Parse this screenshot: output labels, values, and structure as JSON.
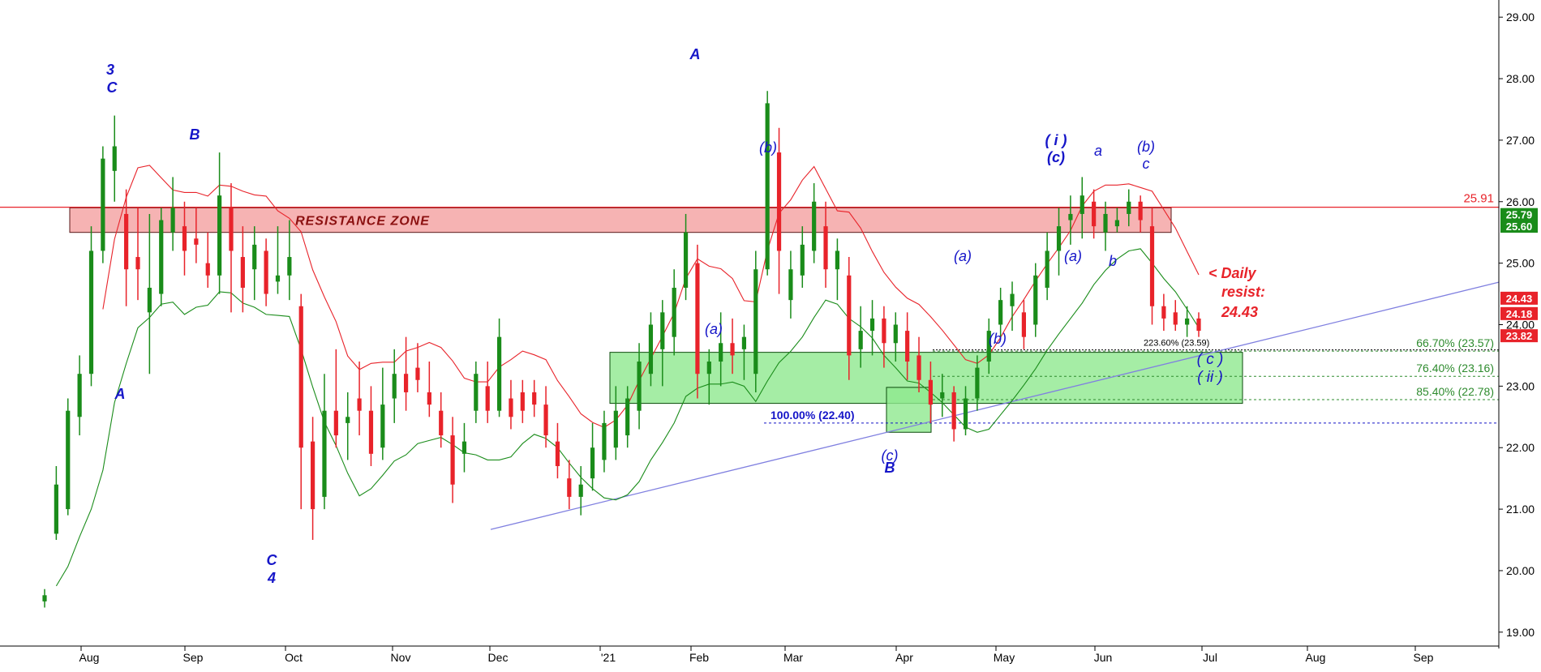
{
  "chart_data": {
    "type": "candlestick",
    "title": "",
    "xlabel": "",
    "ylabel": "",
    "ylim": [
      18.8,
      29.2
    ],
    "y_ticks": [
      "29.00",
      "28.00",
      "27.00",
      "26.00",
      "25.00",
      "24.00",
      "23.00",
      "22.00",
      "21.00",
      "20.00",
      "19.00"
    ],
    "x_ticks": [
      "Aug",
      "Sep",
      "Oct",
      "Nov",
      "Dec",
      "'21",
      "Feb",
      "Mar",
      "Apr",
      "May",
      "Jun",
      "Jul",
      "Aug",
      "Sep"
    ],
    "colors": {
      "up": "#1a8c1a",
      "down": "#e8232a",
      "wave_label": "#1515c8",
      "resistance_fill": "#f4a6a6",
      "support_fill": "#8ee88e",
      "red_line": "#e8232a",
      "fib_line": "#2e8b2e",
      "trendline": "#8080e0"
    },
    "last_price_labels": [
      {
        "text": "25.79",
        "color": "#1a8c1a"
      },
      {
        "text": "25.60",
        "color": "#1a8c1a"
      },
      {
        "text": "24.43",
        "color": "#e8232a"
      },
      {
        "text": "24.18",
        "color": "#e8232a"
      },
      {
        "text": "23.82",
        "color": "#e8232a"
      }
    ],
    "resistance_zone": {
      "label": "RESISTANCE ZONE",
      "low": 25.5,
      "high": 25.9
    },
    "resistance_line": {
      "label": "25.91",
      "value": 25.91
    },
    "support_zone": {
      "low": 22.72,
      "high": 23.55
    },
    "fib_levels": [
      {
        "label": "66.70% (23.57)",
        "value": 23.57
      },
      {
        "label": "76.40% (23.16)",
        "value": 23.16
      },
      {
        "label": "85.40% (22.78)",
        "value": 22.78
      },
      {
        "label": "100.00% (22.40)",
        "value": 22.4
      },
      {
        "label": "223.60% (23.59)",
        "value": 23.59
      }
    ],
    "daily_resist_note": [
      "< Daily",
      "resist:",
      "24.43"
    ],
    "wave_labels": [
      "3",
      "C",
      "A",
      "B",
      "C",
      "4",
      "A",
      "(a)",
      "(b)",
      "(c)",
      "B",
      "(a)",
      "(b)",
      "(a)",
      "( i )",
      "(c)",
      "a",
      "b",
      "(b)",
      "c",
      "( c )",
      "( ii )"
    ],
    "series": [
      {
        "name": "",
        "type": "candles",
        "ohlc": [
          [
            19.5,
            19.7,
            19.4,
            19.6
          ],
          [
            20.6,
            21.7,
            20.5,
            21.4
          ],
          [
            21.0,
            22.8,
            20.9,
            22.6
          ],
          [
            22.5,
            23.5,
            22.2,
            23.2
          ],
          [
            23.2,
            25.6,
            23.0,
            25.2
          ],
          [
            25.2,
            26.9,
            25.0,
            26.7
          ],
          [
            26.5,
            27.4,
            26.0,
            26.9
          ],
          [
            25.8,
            26.2,
            24.3,
            24.9
          ],
          [
            25.1,
            25.9,
            24.4,
            24.9
          ],
          [
            24.2,
            25.8,
            23.2,
            24.6
          ],
          [
            24.5,
            25.9,
            24.3,
            25.7
          ],
          [
            25.5,
            26.4,
            25.2,
            25.9
          ],
          [
            25.6,
            26.0,
            24.8,
            25.2
          ],
          [
            25.4,
            25.9,
            25.0,
            25.3
          ],
          [
            25.0,
            25.5,
            24.6,
            24.8
          ],
          [
            24.8,
            26.8,
            24.5,
            26.1
          ],
          [
            25.9,
            26.3,
            24.2,
            25.2
          ],
          [
            25.1,
            25.6,
            24.2,
            24.6
          ],
          [
            24.9,
            25.6,
            24.4,
            25.3
          ],
          [
            25.2,
            25.4,
            24.3,
            24.5
          ],
          [
            24.7,
            25.6,
            24.5,
            24.8
          ],
          [
            24.8,
            25.7,
            24.4,
            25.1
          ],
          [
            24.3,
            24.5,
            21.0,
            22.0
          ],
          [
            22.1,
            22.5,
            20.5,
            21.0
          ],
          [
            21.2,
            23.2,
            21.0,
            22.6
          ],
          [
            22.6,
            23.6,
            22.0,
            22.2
          ],
          [
            22.4,
            22.9,
            21.8,
            22.5
          ],
          [
            22.8,
            23.4,
            22.2,
            22.6
          ],
          [
            22.6,
            23.0,
            21.7,
            21.9
          ],
          [
            22.0,
            23.3,
            21.8,
            22.7
          ],
          [
            22.8,
            23.6,
            22.4,
            23.2
          ],
          [
            23.2,
            23.8,
            22.6,
            22.9
          ],
          [
            23.3,
            23.7,
            22.9,
            23.1
          ],
          [
            22.9,
            23.4,
            22.5,
            22.7
          ],
          [
            22.6,
            22.9,
            22.0,
            22.2
          ],
          [
            22.2,
            22.5,
            21.1,
            21.4
          ],
          [
            21.9,
            22.4,
            21.6,
            22.1
          ],
          [
            22.6,
            23.4,
            22.4,
            23.2
          ],
          [
            23.0,
            23.4,
            22.4,
            22.6
          ],
          [
            22.6,
            24.1,
            22.5,
            23.8
          ],
          [
            22.8,
            23.1,
            22.3,
            22.5
          ],
          [
            22.9,
            23.1,
            22.4,
            22.6
          ],
          [
            22.9,
            23.1,
            22.5,
            22.7
          ],
          [
            22.7,
            23.0,
            22.0,
            22.2
          ],
          [
            22.1,
            22.4,
            21.5,
            21.7
          ],
          [
            21.5,
            21.8,
            21.0,
            21.2
          ],
          [
            21.2,
            21.7,
            20.9,
            21.4
          ],
          [
            21.5,
            22.4,
            21.3,
            22.0
          ],
          [
            21.8,
            22.6,
            21.6,
            22.4
          ],
          [
            22.0,
            23.0,
            21.8,
            22.6
          ],
          [
            22.2,
            23.0,
            22.0,
            22.8
          ],
          [
            22.6,
            23.7,
            22.3,
            23.4
          ],
          [
            23.2,
            24.2,
            23.0,
            24.0
          ],
          [
            23.6,
            24.4,
            23.0,
            24.2
          ],
          [
            23.8,
            24.9,
            23.5,
            24.6
          ],
          [
            24.6,
            25.8,
            24.4,
            25.5
          ],
          [
            25.0,
            25.3,
            22.8,
            23.2
          ],
          [
            23.2,
            23.6,
            22.7,
            23.4
          ],
          [
            23.4,
            24.2,
            23.0,
            23.7
          ],
          [
            23.7,
            24.1,
            23.2,
            23.5
          ],
          [
            23.6,
            24.0,
            23.1,
            23.8
          ],
          [
            23.2,
            25.2,
            22.9,
            24.9
          ],
          [
            24.9,
            27.8,
            24.8,
            27.6
          ],
          [
            26.8,
            27.2,
            24.5,
            25.2
          ],
          [
            24.4,
            25.2,
            24.1,
            24.9
          ],
          [
            24.8,
            25.6,
            24.6,
            25.3
          ],
          [
            25.2,
            26.3,
            25.0,
            26.0
          ],
          [
            25.6,
            26.0,
            24.6,
            24.9
          ],
          [
            24.9,
            25.4,
            24.4,
            25.2
          ],
          [
            24.8,
            25.1,
            23.1,
            23.5
          ],
          [
            23.6,
            24.3,
            23.3,
            23.9
          ],
          [
            23.9,
            24.4,
            23.5,
            24.1
          ],
          [
            24.1,
            24.3,
            23.3,
            23.7
          ],
          [
            23.7,
            24.2,
            23.4,
            24.0
          ],
          [
            23.9,
            24.2,
            23.1,
            23.4
          ],
          [
            23.5,
            23.8,
            22.9,
            23.1
          ],
          [
            23.1,
            23.4,
            22.4,
            22.7
          ],
          [
            22.8,
            23.2,
            22.5,
            22.9
          ],
          [
            22.9,
            23.0,
            22.1,
            22.3
          ],
          [
            22.3,
            23.0,
            22.2,
            22.8
          ],
          [
            22.8,
            23.5,
            22.6,
            23.3
          ],
          [
            23.4,
            24.1,
            23.2,
            23.9
          ],
          [
            24.0,
            24.6,
            23.8,
            24.4
          ],
          [
            24.3,
            24.7,
            23.9,
            24.5
          ],
          [
            24.2,
            24.4,
            23.6,
            23.8
          ],
          [
            24.0,
            25.0,
            23.8,
            24.8
          ],
          [
            24.6,
            25.5,
            24.4,
            25.2
          ],
          [
            25.2,
            25.9,
            24.8,
            25.6
          ],
          [
            25.7,
            26.1,
            25.3,
            25.8
          ],
          [
            25.8,
            26.4,
            25.4,
            26.1
          ],
          [
            26.0,
            26.2,
            25.4,
            25.6
          ],
          [
            25.5,
            26.0,
            25.2,
            25.8
          ],
          [
            25.6,
            25.9,
            25.5,
            25.7
          ],
          [
            25.8,
            26.2,
            25.6,
            26.0
          ],
          [
            26.0,
            26.1,
            25.5,
            25.7
          ],
          [
            25.6,
            25.9,
            24.0,
            24.3
          ],
          [
            24.3,
            24.5,
            23.9,
            24.1
          ],
          [
            24.2,
            24.4,
            23.9,
            24.0
          ],
          [
            24.0,
            24.3,
            23.8,
            24.1
          ],
          [
            24.1,
            24.2,
            23.8,
            23.9
          ]
        ]
      },
      {
        "name": "",
        "type": "line",
        "color": "#e8232a"
      },
      {
        "name": "",
        "type": "line",
        "color": "#1a8c1a"
      }
    ]
  }
}
